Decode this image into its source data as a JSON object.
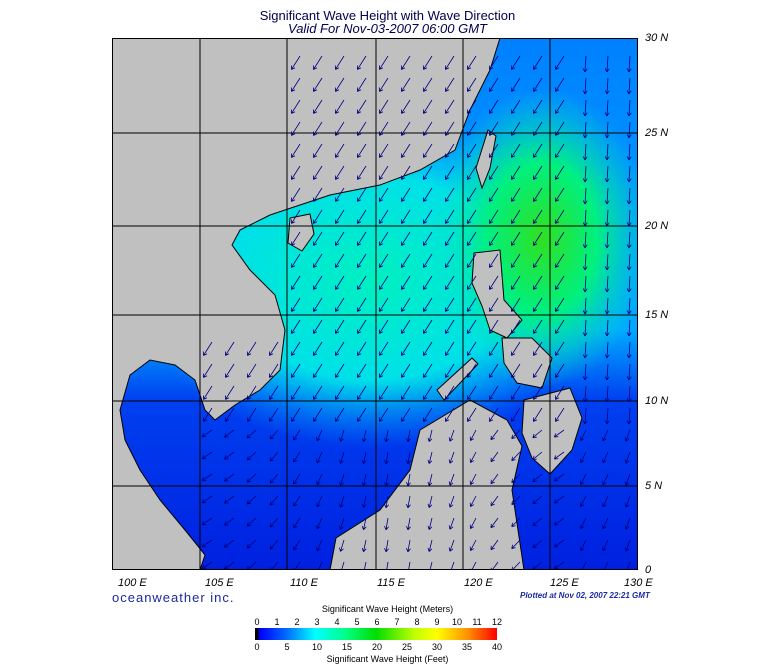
{
  "title": "Significant Wave Height with Wave Direction",
  "subtitle": "Valid For Nov-03-2007 06:00 GMT",
  "brand": "oceanweather inc.",
  "plotted": "Plotted at Nov 02, 2007 22:21 GMT",
  "lon_labels": [
    "100 E",
    "105 E",
    "110 E",
    "115 E",
    "120 E",
    "125 E",
    "130 E"
  ],
  "lat_labels": [
    "30 N",
    "25 N",
    "20 N",
    "15 N",
    "10 N",
    "5 N",
    "0"
  ],
  "colorbar": {
    "title_top": "Significant Wave Height (Meters)",
    "title_bottom": "Significant Wave Height (Feet)",
    "meters": [
      "0",
      "1",
      "2",
      "3",
      "4",
      "5",
      "6",
      "7",
      "8",
      "9",
      "10",
      "11",
      "12"
    ],
    "feet": [
      "0",
      "5",
      "10",
      "15",
      "20",
      "25",
      "30",
      "35",
      "40"
    ],
    "colors": [
      "#000000",
      "#0000ff",
      "#00ffff",
      "#00dd00",
      "#ffff00",
      "#ff0000"
    ]
  },
  "colors": {
    "land": "#c0c0c0",
    "arrow": "#000080",
    "grid": "#000000"
  }
}
